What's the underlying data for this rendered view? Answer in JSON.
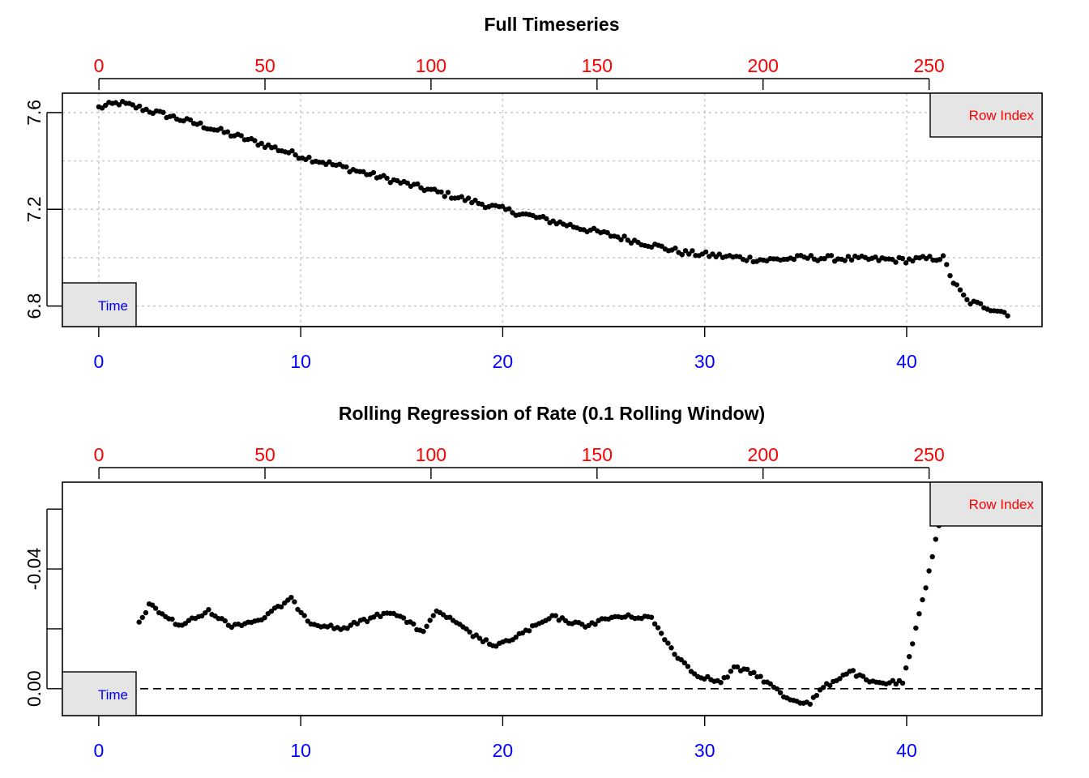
{
  "chart_data": [
    {
      "type": "scatter",
      "title": "Full Timeseries",
      "xlabel": "",
      "ylabel": "",
      "bottom_axis": {
        "name": "Time",
        "range": [
          -1.8,
          46.7
        ],
        "ticks": [
          0,
          10,
          20,
          30,
          40
        ],
        "color": "#0000ff"
      },
      "top_axis": {
        "name": "Row Index",
        "range": [
          -11,
          284
        ],
        "ticks": [
          0,
          50,
          100,
          150,
          200,
          250
        ],
        "color": "#ff0000"
      },
      "ylim": [
        6.715,
        7.68
      ],
      "yticks": [
        6.8,
        7.2,
        7.6
      ],
      "grid": true,
      "grid_y": [
        6.8,
        7.0,
        7.2,
        7.4,
        7.6
      ],
      "grid_x": [
        0,
        10,
        20,
        30,
        40
      ],
      "legend": [
        {
          "label": "Row Index",
          "position": "top-right",
          "color": "#ff0000"
        },
        {
          "label": "Time",
          "position": "bottom-left",
          "color": "#0000ff"
        }
      ],
      "points_color": "#000000",
      "trend_knots": [
        [
          0,
          7.62
        ],
        [
          1,
          7.64
        ],
        [
          2,
          7.62
        ],
        [
          5,
          7.55
        ],
        [
          10,
          7.42
        ],
        [
          15,
          7.31
        ],
        [
          20,
          7.2
        ],
        [
          25,
          7.1
        ],
        [
          29,
          7.02
        ],
        [
          33,
          6.99
        ],
        [
          35,
          7.0
        ],
        [
          40,
          6.99
        ],
        [
          41.8,
          7.0
        ],
        [
          42.3,
          6.9
        ],
        [
          43,
          6.82
        ],
        [
          45,
          6.77
        ]
      ],
      "n_points": 269
    },
    {
      "type": "scatter",
      "title": "Rolling Regression of Rate (0.1 Rolling Window)",
      "xlabel": "",
      "ylabel": "",
      "bottom_axis": {
        "name": "Time",
        "range": [
          -1.8,
          46.7
        ],
        "ticks": [
          0,
          10,
          20,
          30,
          40
        ],
        "color": "#0000ff"
      },
      "top_axis": {
        "name": "Row Index",
        "range": [
          -11,
          284
        ],
        "ticks": [
          0,
          50,
          100,
          150,
          200,
          250
        ],
        "color": "#ff0000"
      },
      "ylim": [
        0.009,
        -0.069
      ],
      "yticks": [
        0.0,
        -0.04
      ],
      "yticks_minor": [
        -0.02,
        -0.06
      ],
      "grid": false,
      "reference_line": {
        "y": 0.0,
        "style": "dashed"
      },
      "legend": [
        {
          "label": "Row Index",
          "position": "top-right",
          "color": "#ff0000"
        },
        {
          "label": "Time",
          "position": "bottom-left",
          "color": "#0000ff"
        }
      ],
      "points_color": "#000000",
      "trend_knots": [
        [
          2,
          -0.022
        ],
        [
          2.5,
          -0.028
        ],
        [
          4,
          -0.021
        ],
        [
          5.5,
          -0.026
        ],
        [
          6.5,
          -0.021
        ],
        [
          8,
          -0.023
        ],
        [
          9.5,
          -0.03
        ],
        [
          10.5,
          -0.022
        ],
        [
          12,
          -0.02
        ],
        [
          14.5,
          -0.026
        ],
        [
          16,
          -0.019
        ],
        [
          16.8,
          -0.026
        ],
        [
          18.5,
          -0.018
        ],
        [
          19.7,
          -0.014
        ],
        [
          22.5,
          -0.024
        ],
        [
          24,
          -0.021
        ],
        [
          25.5,
          -0.024
        ],
        [
          27.3,
          -0.024
        ],
        [
          28.5,
          -0.012
        ],
        [
          29.5,
          -0.005
        ],
        [
          30.8,
          -0.002
        ],
        [
          31.5,
          -0.007
        ],
        [
          32.5,
          -0.005
        ],
        [
          33.5,
          0.0
        ],
        [
          34,
          0.003
        ],
        [
          35.2,
          0.005
        ],
        [
          35.8,
          0.0
        ],
        [
          37.2,
          -0.006
        ],
        [
          38.2,
          -0.002
        ],
        [
          39.8,
          -0.002
        ],
        [
          40.3,
          -0.015
        ],
        [
          41,
          -0.036
        ],
        [
          41.6,
          -0.055
        ]
      ],
      "n_points": 243
    }
  ],
  "legend_labels": {
    "row_index": "Row Index",
    "time": "Time"
  }
}
